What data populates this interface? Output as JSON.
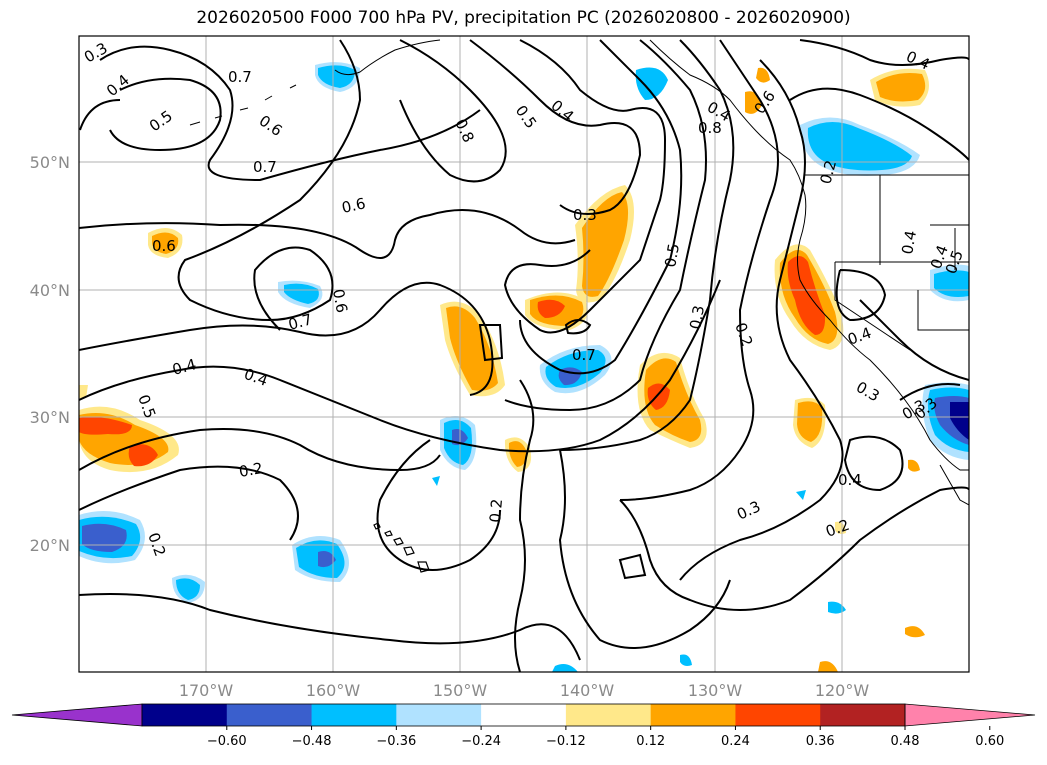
{
  "title": "2026020500 F000 700 hPa PV, precipitation PC (2026020800 - 2026020900)",
  "latitude_labels": [
    "50°N",
    "40°N",
    "30°N",
    "20°N"
  ],
  "longitude_labels": [
    "170°W",
    "160°W",
    "150°W",
    "140°W",
    "130°W",
    "120°W"
  ],
  "contour_labels": [
    "0.3",
    "0.4",
    "0.7",
    "0.6",
    "0.5",
    "0.7",
    "0.8",
    "0.5",
    "0.4",
    "0.6",
    "0.8",
    "0.4",
    "0.6",
    "0.3",
    "0.6",
    "0.5",
    "0.7",
    "0.6",
    "0.4",
    "0.4",
    "0.5",
    "0.2",
    "0.3",
    "0.2",
    "0.7",
    "0.4",
    "0.2",
    "0.3",
    "0.2",
    "0.3",
    "0.2",
    "0.4",
    "0.4",
    "0.3",
    "0.2",
    "0.4",
    "0.3",
    "0.4",
    "0.5"
  ],
  "colorbar": {
    "ticks": [
      "−0.60",
      "−0.48",
      "−0.36",
      "−0.24",
      "−0.12",
      "0.12",
      "0.24",
      "0.36",
      "0.48",
      "0.60"
    ],
    "colors": [
      "#9932cc",
      "#00008b",
      "#3a5fcd",
      "#00bfff",
      "#b0e2ff",
      "#ffffff",
      "#ffe88a",
      "#ffa500",
      "#ff4500",
      "#b22222",
      "#ff82ab"
    ]
  }
}
